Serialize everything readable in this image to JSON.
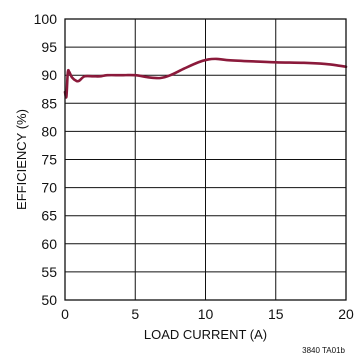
{
  "chart_data": {
    "type": "line",
    "title": "",
    "xlabel": "LOAD CURRENT (A)",
    "ylabel": "EFFICIENCY (%)",
    "xlim": [
      0,
      20
    ],
    "ylim": [
      50,
      100
    ],
    "xticks": [
      0,
      5,
      10,
      15,
      20
    ],
    "yticks": [
      50,
      55,
      60,
      65,
      70,
      75,
      80,
      85,
      90,
      95,
      100
    ],
    "grid": true,
    "legend": "none",
    "series": [
      {
        "color": "#8b1a3b",
        "points": [
          [
            0.0,
            87.0
          ],
          [
            0.1,
            86.2
          ],
          [
            0.2,
            90.5
          ],
          [
            0.3,
            90.6
          ],
          [
            0.5,
            89.6
          ],
          [
            0.8,
            89.0
          ],
          [
            1.0,
            89.0
          ],
          [
            1.4,
            89.8
          ],
          [
            2.0,
            89.8
          ],
          [
            2.5,
            89.8
          ],
          [
            3.0,
            90.0
          ],
          [
            4.0,
            90.0
          ],
          [
            5.0,
            90.0
          ],
          [
            6.0,
            89.6
          ],
          [
            6.8,
            89.5
          ],
          [
            7.5,
            90.0
          ],
          [
            8.5,
            91.2
          ],
          [
            9.5,
            92.3
          ],
          [
            10.2,
            92.8
          ],
          [
            10.8,
            92.9
          ],
          [
            11.5,
            92.7
          ],
          [
            13.0,
            92.5
          ],
          [
            15.0,
            92.3
          ],
          [
            17.0,
            92.2
          ],
          [
            18.5,
            92.0
          ],
          [
            19.5,
            91.7
          ],
          [
            20.0,
            91.5
          ]
        ]
      }
    ],
    "note": "3840 TA01b"
  }
}
